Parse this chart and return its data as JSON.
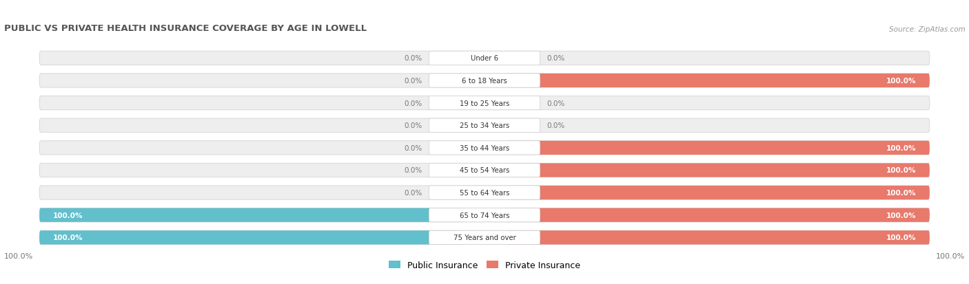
{
  "title": "PUBLIC VS PRIVATE HEALTH INSURANCE COVERAGE BY AGE IN LOWELL",
  "source": "Source: ZipAtlas.com",
  "categories": [
    "Under 6",
    "6 to 18 Years",
    "19 to 25 Years",
    "25 to 34 Years",
    "35 to 44 Years",
    "45 to 54 Years",
    "55 to 64 Years",
    "65 to 74 Years",
    "75 Years and over"
  ],
  "public_values": [
    0.0,
    0.0,
    0.0,
    0.0,
    0.0,
    0.0,
    0.0,
    100.0,
    100.0
  ],
  "private_values": [
    0.0,
    100.0,
    0.0,
    0.0,
    100.0,
    100.0,
    100.0,
    100.0,
    100.0
  ],
  "public_color": "#62bfcc",
  "private_color": "#e8796b",
  "bg_color": "#eeeeee",
  "bg_edge_color": "#d8d8d8",
  "title_color": "#555555",
  "source_color": "#999999",
  "cat_label_color": "#333333",
  "value_inside_color": "#ffffff",
  "value_outside_color": "#777777",
  "axis_label_left": "100.0%",
  "axis_label_right": "100.0%",
  "legend_public": "Public Insurance",
  "legend_private": "Private Insurance"
}
